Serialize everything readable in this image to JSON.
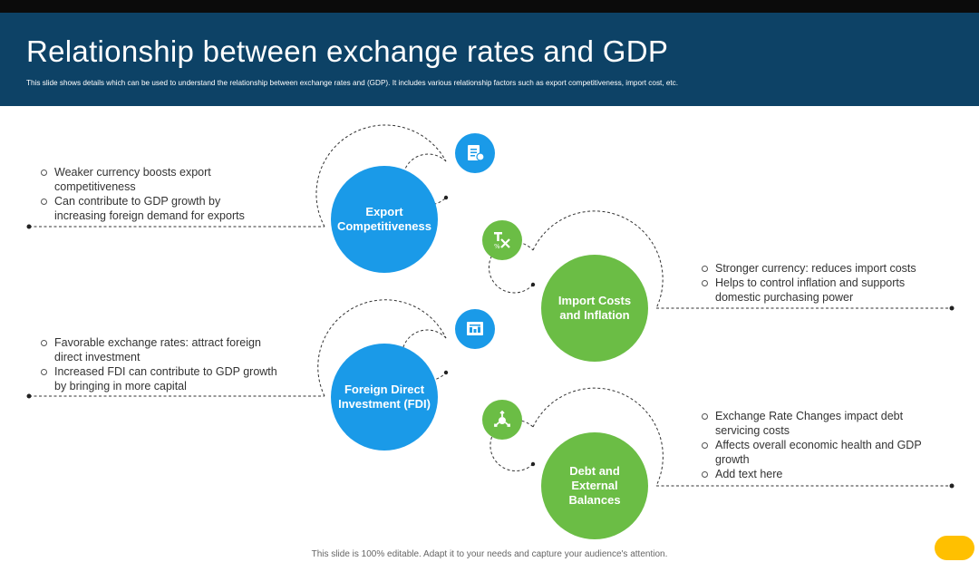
{
  "header": {
    "title": "Relationship between exchange rates and GDP",
    "subtitle": "This slide shows details which can be used to understand the relationship between exchange rates and (GDP). It includes various relationship factors such as export competitiveness, import cost, etc."
  },
  "factors": [
    {
      "label": "Export\nCompetitiveness",
      "color": "#1a9ae8",
      "icon": "document-icon",
      "bullets": [
        "Weaker currency  boosts export competitiveness",
        "Can contribute to GDP growth by increasing foreign demand for exports"
      ]
    },
    {
      "label": "Import Costs\nand Inflation",
      "color": "#6bbd45",
      "icon": "tax-icon",
      "bullets": [
        "Stronger currency:  reduces import costs",
        "Helps to control inflation and supports domestic purchasing power"
      ]
    },
    {
      "label": "Foreign Direct\nInvestment (FDI)",
      "color": "#1a9ae8",
      "icon": "certificate-icon",
      "bullets": [
        "Favorable exchange rates: attract foreign direct investment",
        "Increased FDI can contribute to GDP growth by bringing in more capital"
      ]
    },
    {
      "label": "Debt and\nExternal\nBalances",
      "color": "#6bbd45",
      "icon": "balance-arrows-icon",
      "bullets": [
        "Exchange Rate Changes impact debt servicing costs",
        "Affects overall economic health and GDP growth",
        "Add text here"
      ]
    }
  ],
  "footer": {
    "note": "This slide is 100% editable. Adapt it to your needs and capture your audience's attention."
  }
}
